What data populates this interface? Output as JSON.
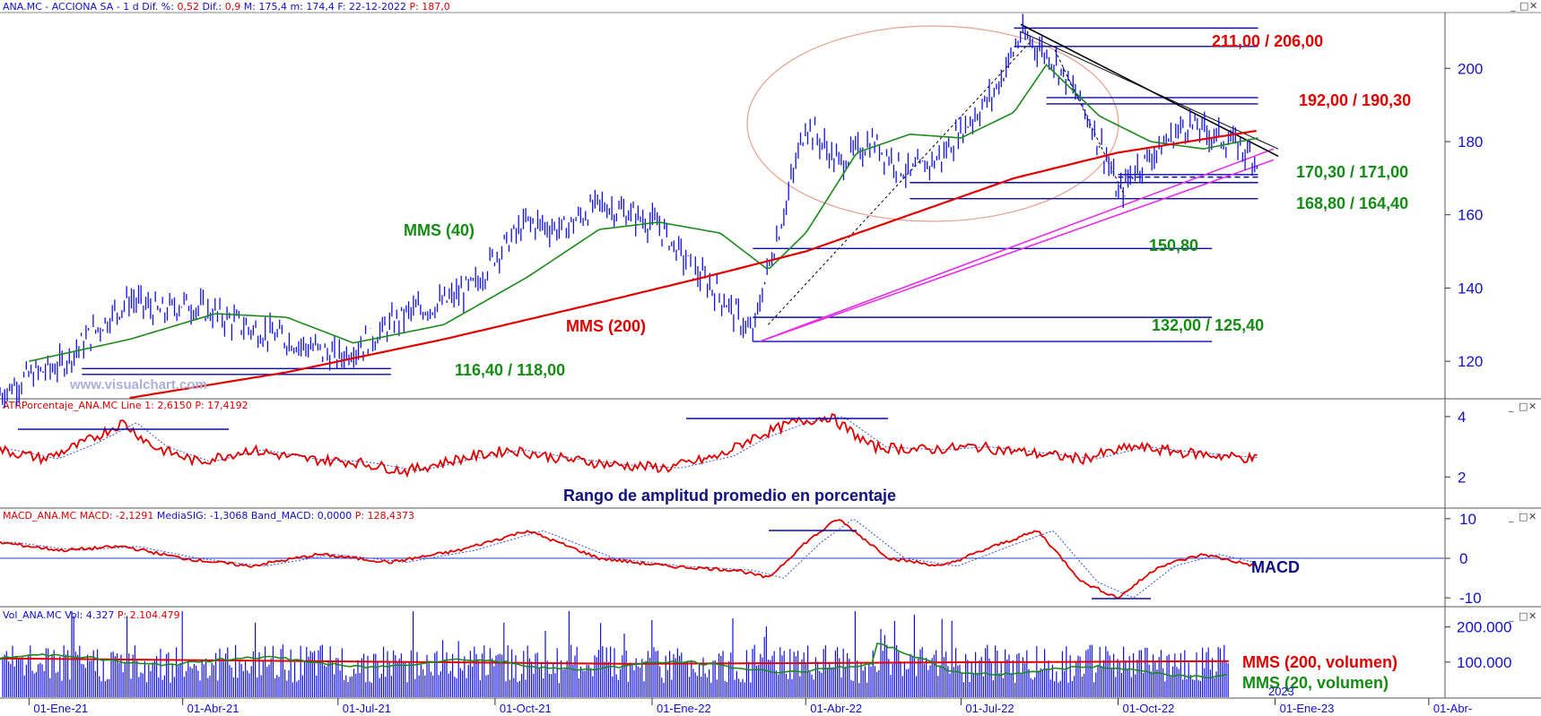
{
  "colors": {
    "price": "#1010e0",
    "mms40": "#1b8a1b",
    "mms200": "#e00000",
    "level_line": "#0a0aa8",
    "support": "#e62ee6",
    "channel_ellipse": "#e8a090",
    "red_label": "#e00000",
    "green_label": "#148c14",
    "navy_label": "#101080",
    "axis_text": "#1010d0",
    "header_name": "#1010c8",
    "header_value": "#e00000"
  },
  "window_controls": [
    "_",
    "□",
    "✕"
  ],
  "panel_controls": [
    "_",
    "□",
    "✕"
  ],
  "panes": {
    "price": {
      "header": [
        {
          "text": "ANA.MC - ACCIONA SA -  1 d",
          "color": "name"
        },
        {
          "text": " Dif. %: ",
          "color": "name"
        },
        {
          "text": "0,52",
          "color": "value"
        },
        {
          "text": "  Dif.: ",
          "color": "name"
        },
        {
          "text": "0,9",
          "color": "value"
        },
        {
          "text": "  M: 175,4",
          "color": "name"
        },
        {
          "text": "  m: 174,4",
          "color": "name"
        },
        {
          "text": "  F: 22-12-2022",
          "color": "name"
        },
        {
          "text": "  P: 187,0",
          "color": "value"
        }
      ],
      "yticks": [
        "200",
        "180",
        "160",
        "140",
        "120"
      ],
      "labels": {
        "mms40": "MMS (40)",
        "mms200": "MMS (200)",
        "watermark": "www.visualchart.com",
        "r1": "211,00 / 206,00",
        "r2": "192,00 / 190,30",
        "s1": "170,30 / 171,00",
        "s2": "168,80 / 164,40",
        "s3": "150,80",
        "s4": "132,00 / 125,40",
        "s5": "116,40 / 118,00"
      }
    },
    "atr": {
      "header": [
        {
          "text": "ATRPorcentaje_ANA.MC  Line 1: ",
          "color": "value"
        },
        {
          "text": "2,6150",
          "color": "value"
        },
        {
          "text": "  P: 17,4192",
          "color": "value"
        }
      ],
      "yticks": [
        "4",
        "2"
      ],
      "label": "Rango de amplitud promedio en porcentaje"
    },
    "macd": {
      "header": [
        {
          "text": "MACD_ANA.MC  MACD: ",
          "color": "value"
        },
        {
          "text": "-2,1291",
          "color": "value"
        },
        {
          "text": "  MediaSIG: -1,3068",
          "color": "name"
        },
        {
          "text": "  Band_MACD: 0,0000",
          "color": "name"
        },
        {
          "text": "  P: 128,4373",
          "color": "value"
        }
      ],
      "yticks": [
        "10",
        "0",
        "-10"
      ],
      "label": "MACD"
    },
    "vol": {
      "header": [
        {
          "text": "Vol_ANA.MC  Vol: 4.327",
          "color": "name"
        },
        {
          "text": "  P: 2.104.479",
          "color": "value"
        }
      ],
      "yticks": [
        "200.000",
        "100.000"
      ],
      "label_mms200": "MMS (200, volumen)",
      "label_mms20": "MMS (20, volumen)"
    }
  },
  "x_axis": {
    "ticks": [
      "01-Ene-21",
      "01-Abr-21",
      "01-Jul-21",
      "01-Oct-21",
      "01-Ene-22",
      "01-Abr-22",
      "01-Jul-22",
      "01-Oct-22",
      "01-Ene-23",
      "01-Abr-"
    ],
    "year_marker": "2023"
  },
  "chart_data": {
    "type": "line",
    "price_series": {
      "name": "ANA.MC",
      "dates": [
        "2020-12-15",
        "2021-01-01",
        "2021-01-20",
        "2021-02-10",
        "2021-03-01",
        "2021-03-20",
        "2021-04-01",
        "2021-04-20",
        "2021-05-10",
        "2021-06-01",
        "2021-06-20",
        "2021-07-01",
        "2021-07-20",
        "2021-08-10",
        "2021-09-01",
        "2021-09-20",
        "2021-10-01",
        "2021-10-20",
        "2021-11-10",
        "2021-12-01",
        "2021-12-20",
        "2022-01-05",
        "2022-01-25",
        "2022-02-10",
        "2022-03-01",
        "2022-03-07",
        "2022-03-20",
        "2022-04-01",
        "2022-04-20",
        "2022-05-10",
        "2022-06-01",
        "2022-06-20",
        "2022-07-01",
        "2022-07-20",
        "2022-08-05",
        "2022-08-12",
        "2022-08-25",
        "2022-09-10",
        "2022-09-25",
        "2022-10-01",
        "2022-10-10",
        "2022-10-25",
        "2022-11-10",
        "2022-11-25",
        "2022-12-10",
        "2022-12-22"
      ],
      "close": [
        111,
        116,
        119,
        129,
        137,
        133,
        136,
        133,
        129,
        126,
        123,
        121,
        126,
        133,
        136,
        141,
        149,
        158,
        156,
        163,
        160,
        157,
        145,
        138,
        127,
        140,
        162,
        185,
        174,
        180,
        171,
        176,
        183,
        193,
        209,
        207,
        202,
        190,
        175,
        165,
        172,
        178,
        185,
        182,
        179,
        175
      ]
    },
    "mms40_series": {
      "name": "MMS (40)",
      "dates": [
        "2021-01-01",
        "2021-03-01",
        "2021-04-20",
        "2021-06-01",
        "2021-07-10",
        "2021-09-01",
        "2021-10-20",
        "2021-12-01",
        "2022-01-05",
        "2022-02-10",
        "2022-03-10",
        "2022-04-01",
        "2022-05-01",
        "2022-06-01",
        "2022-07-01",
        "2022-08-01",
        "2022-08-20",
        "2022-09-20",
        "2022-10-20",
        "2022-11-20",
        "2022-12-22"
      ],
      "values": [
        120,
        126,
        133,
        132,
        125,
        130,
        143,
        156,
        158,
        155,
        145,
        155,
        177,
        182,
        181,
        188,
        201,
        187,
        180,
        178,
        181
      ]
    },
    "mms200_series": {
      "name": "MMS (200)",
      "dates": [
        "2021-03-01",
        "2021-06-01",
        "2021-09-01",
        "2021-12-01",
        "2022-02-01",
        "2022-04-01",
        "2022-06-01",
        "2022-08-01",
        "2022-10-01",
        "2022-12-22"
      ],
      "values": [
        110,
        117,
        126,
        136,
        143,
        150,
        160,
        170,
        177,
        183
      ]
    },
    "levels": [
      {
        "from": "2022-08-01",
        "to": "2022-12-22",
        "values": [
          211,
          206
        ],
        "color": "red"
      },
      {
        "from": "2022-08-20",
        "to": "2022-12-22",
        "values": [
          192,
          190.3
        ],
        "color": "red"
      },
      {
        "from": "2022-10-01",
        "to": "2022-12-22",
        "values": [
          170.3,
          171
        ],
        "color": "green"
      },
      {
        "from": "2022-06-01",
        "to": "2022-12-22",
        "values": [
          168.8,
          164.4
        ],
        "color": "green"
      },
      {
        "from": "2022-03-01",
        "to": "2022-11-25",
        "values": [
          150.8
        ],
        "color": "green"
      },
      {
        "from": "2022-03-01",
        "to": "2022-11-25",
        "values": [
          132,
          125.4
        ],
        "color": "green"
      },
      {
        "from": "2021-02-01",
        "to": "2021-08-01",
        "values": [
          116.4,
          118
        ],
        "color": "green"
      }
    ],
    "ylim": [
      110,
      215
    ],
    "yticks": [
      120,
      140,
      160,
      180,
      200
    ],
    "xlim": [
      "2020-12-15",
      "2023-04-10"
    ],
    "atr": {
      "dates": [
        "2020-12-15",
        "2021-01-10",
        "2021-02-01",
        "2021-02-25",
        "2021-03-15",
        "2021-04-10",
        "2021-05-10",
        "2021-06-10",
        "2021-07-10",
        "2021-08-10",
        "2021-09-10",
        "2021-10-10",
        "2021-11-10",
        "2021-12-10",
        "2022-01-10",
        "2022-02-10",
        "2022-03-01",
        "2022-03-25",
        "2022-04-15",
        "2022-05-10",
        "2022-06-10",
        "2022-07-10",
        "2022-08-10",
        "2022-09-10",
        "2022-10-10",
        "2022-11-10",
        "2022-12-22"
      ],
      "values": [
        2.9,
        2.6,
        3.1,
        3.8,
        3.0,
        2.5,
        2.9,
        2.6,
        2.5,
        2.2,
        2.6,
        2.9,
        2.6,
        2.4,
        2.3,
        2.7,
        3.3,
        3.8,
        4.0,
        3.0,
        2.9,
        3.0,
        2.8,
        2.6,
        3.0,
        2.8,
        2.6
      ],
      "ylim": [
        1,
        4.5
      ]
    },
    "macd": {
      "dates": [
        "2020-12-15",
        "2021-01-20",
        "2021-02-25",
        "2021-04-01",
        "2021-05-10",
        "2021-06-20",
        "2021-08-01",
        "2021-09-10",
        "2021-10-20",
        "2021-12-01",
        "2022-01-10",
        "2022-02-20",
        "2022-03-10",
        "2022-04-01",
        "2022-04-20",
        "2022-05-20",
        "2022-06-20",
        "2022-07-20",
        "2022-08-15",
        "2022-09-10",
        "2022-10-01",
        "2022-10-25",
        "2022-11-20",
        "2022-12-22"
      ],
      "values": [
        4,
        2,
        3,
        0,
        -2,
        1,
        -1,
        2,
        7,
        0,
        -2,
        -3,
        -5,
        4,
        10,
        0,
        -2,
        3,
        7,
        -6,
        -10,
        -2,
        1,
        -2.1
      ],
      "ylim": [
        -12,
        12
      ]
    },
    "volume": {
      "mms200_value": 100000,
      "mms20_start": 110000,
      "mms20_end": 70000,
      "ylim": [
        0,
        250000
      ]
    }
  }
}
